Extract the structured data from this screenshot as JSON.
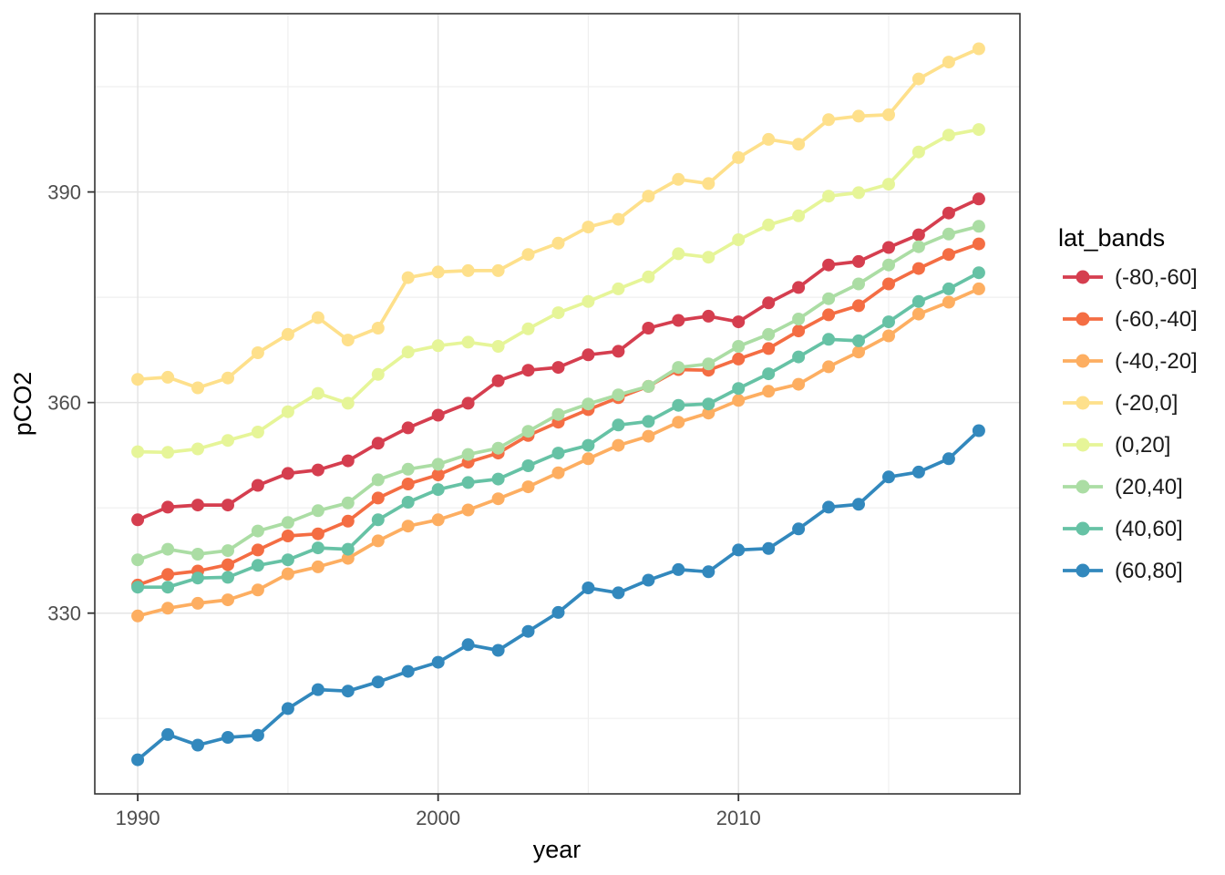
{
  "chart_data": {
    "type": "line",
    "title": "",
    "xlabel": "year",
    "ylabel": "pCO2",
    "legend_title": "lat_bands",
    "legend_position": "right",
    "grid": true,
    "x": [
      1990,
      1991,
      1992,
      1993,
      1994,
      1995,
      1996,
      1997,
      1998,
      1999,
      2000,
      2001,
      2002,
      2003,
      2004,
      2005,
      2006,
      2007,
      2008,
      2009,
      2010,
      2011,
      2012,
      2013,
      2014,
      2015,
      2016,
      2017,
      2018
    ],
    "x_ticks": [
      1990,
      2000,
      2010
    ],
    "x_tick_labels": [
      "1990",
      "2000",
      "2010"
    ],
    "x_minor_ticks": [
      1995,
      2005,
      2015
    ],
    "y_ticks": [
      330,
      360,
      390
    ],
    "y_tick_labels": [
      "330",
      "360",
      "390"
    ],
    "y_minor_ticks": [
      315,
      345,
      375,
      405
    ],
    "xlim": [
      1988.57,
      2019.37
    ],
    "ylim": [
      304.25,
      415.4
    ],
    "series": [
      {
        "name": "(-80,-60]",
        "color": "#d53e4f",
        "values": [
          343.3,
          345.1,
          345.4,
          345.4,
          348.2,
          349.9,
          350.4,
          351.7,
          354.2,
          356.4,
          358.2,
          359.9,
          363.1,
          364.6,
          365.0,
          366.8,
          367.3,
          370.6,
          371.7,
          372.3,
          371.5,
          374.2,
          376.4,
          379.6,
          380.1,
          382.1,
          383.9,
          387.0,
          389.0
        ]
      },
      {
        "name": "(-60,-40]",
        "color": "#f46d43",
        "values": [
          334.0,
          335.5,
          336.0,
          336.9,
          339.0,
          341.0,
          341.3,
          343.1,
          346.4,
          348.4,
          349.7,
          351.5,
          352.8,
          355.3,
          357.2,
          359.0,
          360.7,
          362.3,
          364.7,
          364.6,
          366.2,
          367.7,
          370.2,
          372.5,
          373.8,
          376.9,
          379.1,
          381.1,
          382.6
        ]
      },
      {
        "name": "(-40,-20]",
        "color": "#fdae61",
        "values": [
          329.6,
          330.7,
          331.4,
          331.9,
          333.3,
          335.6,
          336.6,
          337.8,
          340.3,
          342.4,
          343.3,
          344.7,
          346.3,
          348.0,
          350.0,
          352.0,
          353.9,
          355.2,
          357.2,
          358.5,
          360.3,
          361.6,
          362.6,
          365.1,
          367.2,
          369.5,
          372.6,
          374.3,
          376.2
        ]
      },
      {
        "name": "(-20,0]",
        "color": "#fee08b",
        "values": [
          363.3,
          363.6,
          362.1,
          363.5,
          367.1,
          369.7,
          372.1,
          368.9,
          370.6,
          377.8,
          378.6,
          378.8,
          378.8,
          381.1,
          382.7,
          385.0,
          386.1,
          389.4,
          391.8,
          391.2,
          394.9,
          397.5,
          396.8,
          400.3,
          400.8,
          401.0,
          406.1,
          408.5,
          410.4
        ]
      },
      {
        "name": "(0,20]",
        "color": "#e6f598",
        "values": [
          353.0,
          352.9,
          353.4,
          354.6,
          355.8,
          358.7,
          361.3,
          359.9,
          364.0,
          367.2,
          368.1,
          368.6,
          368.0,
          370.5,
          372.8,
          374.4,
          376.2,
          377.9,
          381.2,
          380.7,
          383.2,
          385.3,
          386.6,
          389.4,
          389.9,
          391.1,
          395.7,
          398.1,
          398.9
        ]
      },
      {
        "name": "(20,40]",
        "color": "#abdda4",
        "values": [
          337.6,
          339.1,
          338.4,
          338.9,
          341.7,
          342.9,
          344.6,
          345.7,
          349.0,
          350.5,
          351.2,
          352.6,
          353.5,
          355.9,
          358.3,
          359.8,
          361.1,
          362.3,
          365.0,
          365.5,
          368.0,
          369.7,
          371.9,
          374.8,
          376.9,
          379.6,
          382.2,
          384.0,
          385.1
        ]
      },
      {
        "name": "(40,60]",
        "color": "#66c2a5",
        "values": [
          333.7,
          333.7,
          335.0,
          335.1,
          336.8,
          337.6,
          339.3,
          339.1,
          343.3,
          345.8,
          347.6,
          348.6,
          349.1,
          351.0,
          352.8,
          353.9,
          356.8,
          357.3,
          359.6,
          359.8,
          362.0,
          364.1,
          366.5,
          369.0,
          368.8,
          371.5,
          374.4,
          376.2,
          378.5
        ]
      },
      {
        "name": "(60,80]",
        "color": "#3288bd",
        "values": [
          309.1,
          312.7,
          311.2,
          312.3,
          312.6,
          316.4,
          319.1,
          318.9,
          320.2,
          321.7,
          323.0,
          325.5,
          324.7,
          327.4,
          330.1,
          333.6,
          332.9,
          334.7,
          336.2,
          335.9,
          339.0,
          339.2,
          342.0,
          345.1,
          345.5,
          349.4,
          350.1,
          352.0,
          356.0
        ]
      }
    ]
  }
}
